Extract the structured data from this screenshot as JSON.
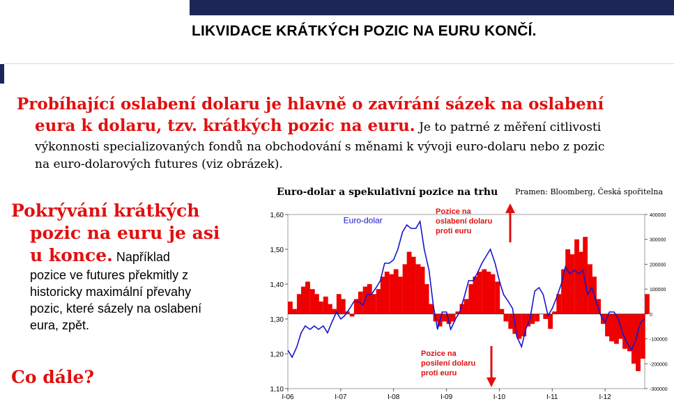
{
  "header": {
    "title": "LIKVIDACE KRÁTKÝCH POZIC NA EURU KONČÍ."
  },
  "headline": {
    "lead_line1": "Probíhající oslabení dolaru je hlavně o zavírání sázek na oslabení",
    "lead_line2": "eura k dolaru, tzv. krátkých pozic na euru.",
    "body_inline": " Je to patrné z měření citlivosti",
    "body_line2": "výkonnosti specializovaných fondů na obchodování s měnami k vývoji euro-dolaru nebo z pozic",
    "body_line3": "na euro-dolarových futures (viz obrázek)."
  },
  "left": {
    "h1": "Pokrývání krátkých",
    "h2": "pozic na euru je asi",
    "h3": "u konce.",
    "b1": " Například",
    "b2": "pozice ve futures překmitly z",
    "b3": "historicky maximální převahy",
    "b4": "pozic, které sázely na oslabení",
    "b5": "eura, zpět.",
    "next": "Co dále?"
  },
  "chart_title": "Euro-dolar a spekulativní pozice na trhu",
  "chart_source": "Pramen: Bloomberg, Česká  spořitelna",
  "chart_data": {
    "type": "area",
    "left_axis": {
      "ylim": [
        1.1,
        1.6
      ],
      "ticks": [
        "1,60",
        "1,50",
        "1,40",
        "1,30",
        "1,20",
        "1,10"
      ]
    },
    "right_axis": {
      "ylim": [
        -300000,
        400000
      ],
      "ticks": [
        "400000",
        "300000",
        "200000",
        "100000",
        "0",
        "-100000",
        "-200000",
        "-300000"
      ]
    },
    "x_ticks": [
      "I-06",
      "I-07",
      "I-08",
      "I-09",
      "I-10",
      "I-11",
      "I-12"
    ],
    "series": [
      {
        "name": "Euro-dolar",
        "color": "#1515c8",
        "x": [
          2006.0,
          2006.08,
          2006.17,
          2006.25,
          2006.33,
          2006.42,
          2006.5,
          2006.58,
          2006.67,
          2006.75,
          2006.83,
          2006.92,
          2007.0,
          2007.08,
          2007.17,
          2007.25,
          2007.33,
          2007.42,
          2007.5,
          2007.58,
          2007.67,
          2007.75,
          2007.83,
          2007.92,
          2008.0,
          2008.08,
          2008.17,
          2008.25,
          2008.33,
          2008.42,
          2008.5,
          2008.58,
          2008.67,
          2008.75,
          2008.83,
          2008.92,
          2009.0,
          2009.08,
          2009.17,
          2009.25,
          2009.33,
          2009.42,
          2009.5,
          2009.58,
          2009.67,
          2009.75,
          2009.83,
          2009.92,
          2010.0,
          2010.08,
          2010.17,
          2010.25,
          2010.33,
          2010.42,
          2010.5,
          2010.58,
          2010.67,
          2010.75,
          2010.83,
          2010.92,
          2011.0,
          2011.08,
          2011.17,
          2011.25,
          2011.33,
          2011.42,
          2011.5,
          2011.58,
          2011.67,
          2011.75,
          2011.83,
          2011.92,
          2012.0,
          2012.08,
          2012.17,
          2012.25,
          2012.33,
          2012.42,
          2012.5,
          2012.58,
          2012.67,
          2012.75
        ],
        "values": [
          1.21,
          1.19,
          1.22,
          1.26,
          1.28,
          1.27,
          1.28,
          1.27,
          1.28,
          1.26,
          1.29,
          1.32,
          1.3,
          1.31,
          1.33,
          1.35,
          1.35,
          1.34,
          1.37,
          1.37,
          1.39,
          1.41,
          1.46,
          1.46,
          1.47,
          1.5,
          1.55,
          1.57,
          1.56,
          1.56,
          1.58,
          1.5,
          1.44,
          1.34,
          1.27,
          1.32,
          1.32,
          1.27,
          1.3,
          1.32,
          1.36,
          1.41,
          1.41,
          1.43,
          1.46,
          1.48,
          1.5,
          1.46,
          1.41,
          1.37,
          1.35,
          1.33,
          1.25,
          1.22,
          1.27,
          1.3,
          1.38,
          1.39,
          1.37,
          1.31,
          1.33,
          1.36,
          1.4,
          1.45,
          1.43,
          1.44,
          1.43,
          1.44,
          1.37,
          1.39,
          1.35,
          1.31,
          1.29,
          1.32,
          1.32,
          1.3,
          1.26,
          1.23,
          1.21,
          1.24,
          1.29,
          1.3
        ]
      },
      {
        "name": "Spekulativní pozice",
        "color": "#ee0000",
        "x": [
          2006.0,
          2006.08,
          2006.17,
          2006.25,
          2006.33,
          2006.42,
          2006.5,
          2006.58,
          2006.67,
          2006.75,
          2006.83,
          2006.92,
          2007.0,
          2007.08,
          2007.17,
          2007.25,
          2007.33,
          2007.42,
          2007.5,
          2007.58,
          2007.67,
          2007.75,
          2007.83,
          2007.92,
          2008.0,
          2008.08,
          2008.17,
          2008.25,
          2008.33,
          2008.42,
          2008.5,
          2008.58,
          2008.67,
          2008.75,
          2008.83,
          2008.92,
          2009.0,
          2009.08,
          2009.17,
          2009.25,
          2009.33,
          2009.42,
          2009.5,
          2009.58,
          2009.67,
          2009.75,
          2009.83,
          2009.92,
          2010.0,
          2010.08,
          2010.17,
          2010.25,
          2010.33,
          2010.42,
          2010.5,
          2010.58,
          2010.67,
          2010.75,
          2010.83,
          2010.92,
          2011.0,
          2011.08,
          2011.17,
          2011.25,
          2011.33,
          2011.42,
          2011.5,
          2011.58,
          2011.67,
          2011.75,
          2011.83,
          2011.92,
          2012.0,
          2012.08,
          2012.17,
          2012.25,
          2012.33,
          2012.42,
          2012.5,
          2012.58,
          2012.67,
          2012.75
        ],
        "values": [
          50000,
          20000,
          80000,
          110000,
          130000,
          100000,
          80000,
          50000,
          70000,
          40000,
          20000,
          80000,
          60000,
          10000,
          -10000,
          60000,
          90000,
          110000,
          120000,
          80000,
          100000,
          150000,
          170000,
          160000,
          180000,
          150000,
          200000,
          250000,
          230000,
          200000,
          190000,
          120000,
          40000,
          -30000,
          -50000,
          -30000,
          -40000,
          -30000,
          10000,
          40000,
          60000,
          120000,
          150000,
          170000,
          180000,
          170000,
          160000,
          130000,
          20000,
          -30000,
          -60000,
          -80000,
          -100000,
          -90000,
          -50000,
          -40000,
          -30000,
          0,
          -20000,
          -60000,
          10000,
          80000,
          180000,
          260000,
          240000,
          300000,
          250000,
          310000,
          200000,
          150000,
          60000,
          -40000,
          -90000,
          -110000,
          -120000,
          -100000,
          -140000,
          -150000,
          -200000,
          -230000,
          -180000,
          80000
        ]
      }
    ],
    "annotations": {
      "up": [
        "Pozice na",
        "oslabení dolaru",
        "proti euru"
      ],
      "down": [
        "Pozice na",
        "posilení dolaru",
        "proti euru"
      ]
    }
  }
}
